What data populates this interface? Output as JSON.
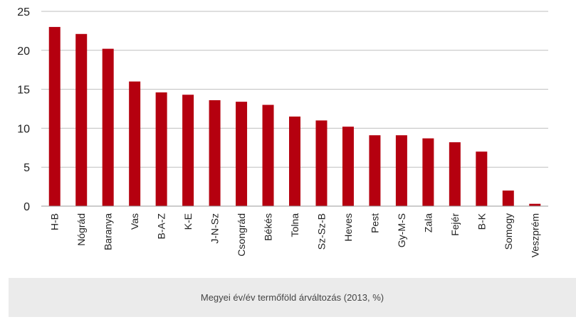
{
  "chart_data": {
    "type": "bar",
    "categories": [
      "H-B",
      "Nógrád",
      "Baranya",
      "Vas",
      "B-A-Z",
      "K-E",
      "J-N-Sz",
      "Csongrád",
      "Békés",
      "Tolna",
      "Sz-Sz-B",
      "Heves",
      "Pest",
      "Gy-M-S",
      "Zala",
      "Fejér",
      "B-K",
      "Somogy",
      "Veszprém"
    ],
    "values": [
      23.0,
      22.1,
      20.2,
      16.0,
      14.6,
      14.3,
      13.6,
      13.4,
      13.0,
      11.5,
      11.0,
      10.2,
      9.1,
      9.1,
      8.7,
      8.2,
      7.0,
      2.0,
      0.3
    ],
    "ylim": [
      0,
      25
    ],
    "yticks": [
      0,
      5,
      10,
      15,
      20,
      25
    ],
    "grid": true,
    "bar_color": "#b5000f",
    "title": "",
    "xlabel": "",
    "ylabel": ""
  },
  "caption": "Megyei év/év termőföld árváltozás (2013, %)"
}
